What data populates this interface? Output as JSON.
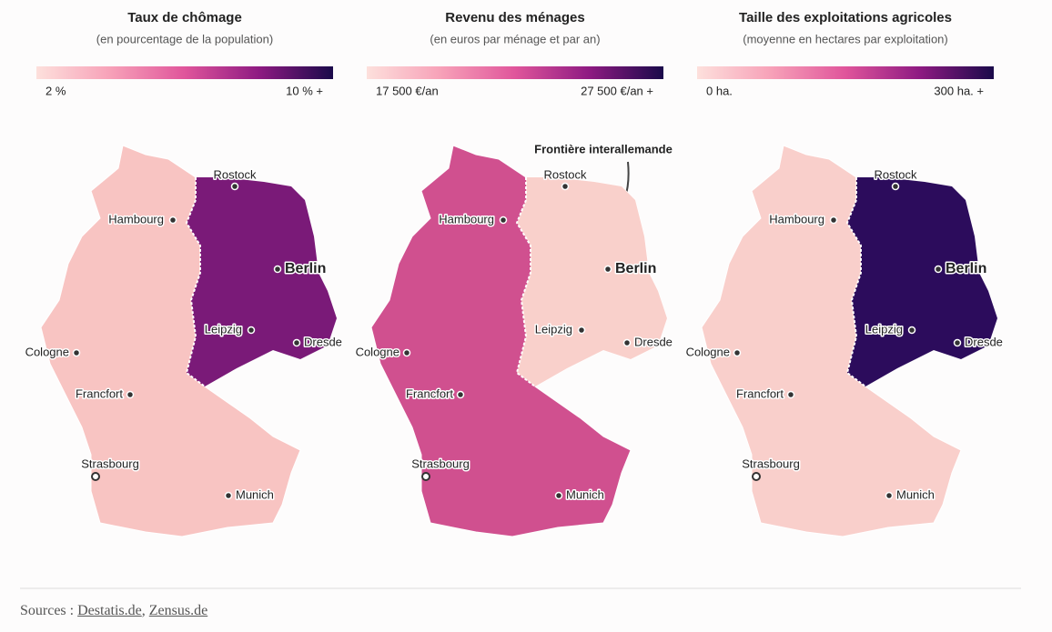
{
  "panels": [
    {
      "title": "Taux de chômage",
      "subtitle": "(en pourcentage de la population)",
      "legend": {
        "min_label": "2 %",
        "max_label": "10 % +",
        "colors": [
          "#fde0dc",
          "#f7a1b8",
          "#e0559b",
          "#8e1a82",
          "#1a0a4a"
        ]
      },
      "west_color": "#f8c4c2",
      "east_color": "#7a1a78"
    },
    {
      "title": "Revenu des ménages",
      "subtitle": "(en euros par ménage et par an)",
      "legend": {
        "min_label": "17 500 €/an",
        "max_label": "27 500 €/an +",
        "colors": [
          "#fde0dc",
          "#f7a1b8",
          "#e0559b",
          "#8e1a82",
          "#1a0a4a"
        ]
      },
      "west_color": "#d0508f",
      "east_color": "#f9d0cb"
    },
    {
      "title": "Taille des exploitations agricoles",
      "subtitle": "(moyenne en hectares par exploitation)",
      "legend": {
        "min_label": "0 ha.",
        "max_label": "300 ha. +",
        "colors": [
          "#fde0dc",
          "#f7a1b8",
          "#e0559b",
          "#8e1a82",
          "#1a0a4a"
        ]
      },
      "west_color": "#f9cfcb",
      "east_color": "#2c0c5c"
    }
  ],
  "cities": [
    "Rostock",
    "Hambourg",
    "Berlin",
    "Leipzig",
    "Dresde",
    "Cologne",
    "Francfort",
    "Strasbourg",
    "Munich"
  ],
  "annotation": "Frontière interallemande",
  "footer": {
    "prefix": "Sources :",
    "links": [
      "Destatis.de",
      "Zensus.de"
    ],
    "separator": ","
  }
}
